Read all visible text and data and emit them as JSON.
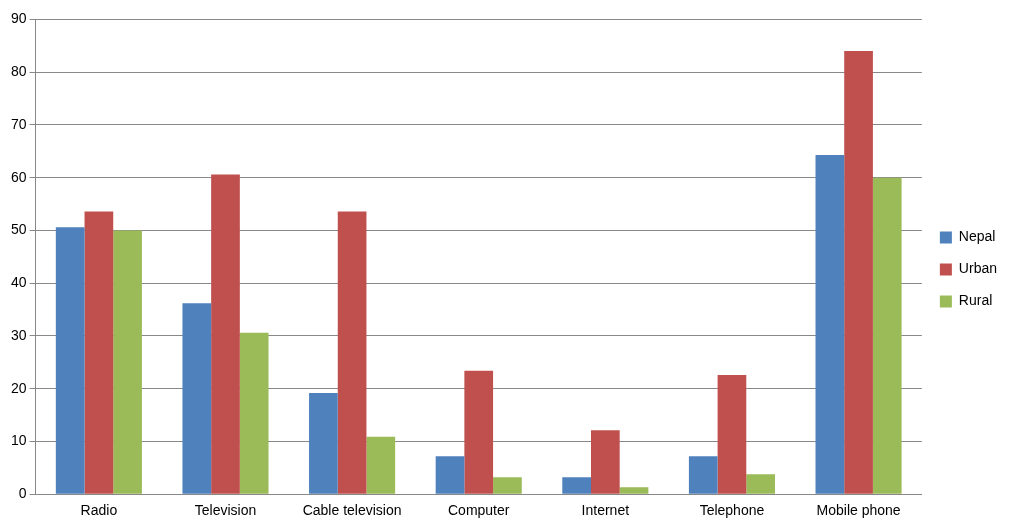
{
  "chart_data": {
    "type": "bar",
    "categories": [
      "Radio",
      "Television",
      "Cable television",
      "Computer",
      "Internet",
      "Telephone",
      "Mobile phone"
    ],
    "series": [
      {
        "name": "Nepal",
        "color": "#4f81bd",
        "values": [
          50.6,
          36.2,
          19.2,
          7.2,
          3.2,
          7.2,
          64.3
        ]
      },
      {
        "name": "Urban",
        "color": "#c0504d",
        "values": [
          53.6,
          60.6,
          53.6,
          23.4,
          12.1,
          22.6,
          84.0
        ]
      },
      {
        "name": "Rural",
        "color": "#9bbb59",
        "values": [
          50.0,
          30.6,
          10.9,
          3.2,
          1.3,
          3.8,
          60.0
        ]
      }
    ],
    "ylim": [
      0,
      90
    ],
    "yticks": [
      0,
      10,
      20,
      30,
      40,
      50,
      60,
      70,
      80,
      90
    ],
    "grid": "y",
    "legend": "right"
  }
}
